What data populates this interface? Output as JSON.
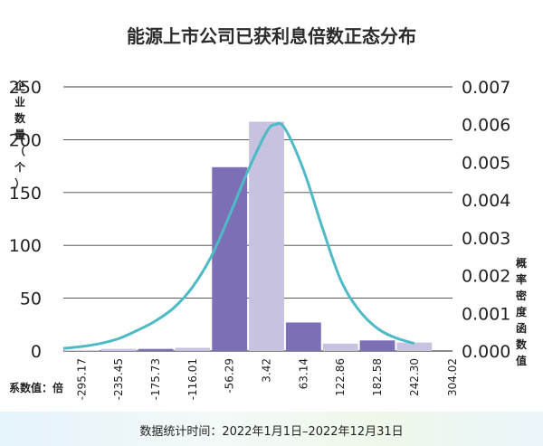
{
  "title": "能源上市公司已获利息倍数正态分布",
  "footer_text": "数据统计时间：2022年1月1日–2022年12月31日",
  "chart_data": {
    "type": "bar",
    "title": "能源上市公司已获利息倍数正态分布",
    "ylabel": "企业数量（个）",
    "y2label": "概率密度函数值",
    "xlabel": "系数值：倍",
    "ylim": [
      0,
      250
    ],
    "y2lim": [
      0,
      0.007
    ],
    "yticks": [
      0,
      50,
      100,
      150,
      200,
      250
    ],
    "y2ticks": [
      "0.000",
      "0.001",
      "0.002",
      "0.003",
      "0.004",
      "0.005",
      "0.006",
      "0.007"
    ],
    "x_tick_labels": [
      "-295.17",
      "-235.45",
      "-175.73",
      "-116.01",
      "-56.29",
      "3.42",
      "63.14",
      "122.86",
      "182.58",
      "242.30",
      "304.02"
    ],
    "bins": [
      {
        "from": -325.03,
        "to": -265.31,
        "value": 1,
        "color": "#d4d1e8"
      },
      {
        "from": -265.31,
        "to": -205.59,
        "value": 2,
        "color": "#c6c2e0"
      },
      {
        "from": -205.59,
        "to": -145.87,
        "value": 2,
        "color": "#7c6fb5"
      },
      {
        "from": -145.87,
        "to": -86.15,
        "value": 3,
        "color": "#c6c2e0"
      },
      {
        "from": -86.15,
        "to": -26.44,
        "value": 174,
        "color": "#7c6fb5"
      },
      {
        "from": -26.44,
        "to": 33.28,
        "value": 217,
        "color": "#c6c2e0"
      },
      {
        "from": 33.28,
        "to": 93.0,
        "value": 27,
        "color": "#7c6fb5"
      },
      {
        "from": 93.0,
        "to": 152.72,
        "value": 7,
        "color": "#c6c2e0"
      },
      {
        "from": 152.72,
        "to": 212.44,
        "value": 10,
        "color": "#7c6fb5"
      },
      {
        "from": 212.44,
        "to": 272.16,
        "value": 8,
        "color": "#c6c2e0"
      }
    ],
    "curve": {
      "color": "#4dbac5",
      "x": [
        -325,
        -295.17,
        -265,
        -235.45,
        -205,
        -175.73,
        -146,
        -116.01,
        -86,
        -56.29,
        -26,
        3.42,
        17,
        33,
        63.14,
        93,
        122.86,
        152,
        182.58,
        212,
        242.3
      ],
      "y": [
        7e-05,
        0.00012,
        0.0002,
        0.00033,
        0.00055,
        0.0008,
        0.00115,
        0.0017,
        0.0025,
        0.0036,
        0.0048,
        0.0058,
        0.006,
        0.0059,
        0.0048,
        0.0033,
        0.0019,
        0.0011,
        0.0006,
        0.00035,
        0.0002
      ]
    },
    "grid": "horizontal",
    "legend": "none"
  }
}
